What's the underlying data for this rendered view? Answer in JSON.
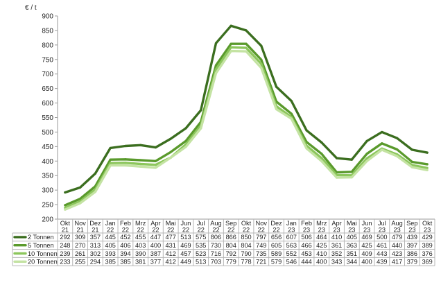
{
  "chart_data": {
    "type": "line",
    "ylabel": "€ / t",
    "ylim": [
      200,
      900
    ],
    "yticks": [
      200,
      250,
      300,
      350,
      400,
      450,
      500,
      550,
      600,
      650,
      700,
      750,
      800,
      850,
      900
    ],
    "grid": false,
    "legend": "table-below",
    "categories": [
      [
        "Okt",
        "21"
      ],
      [
        "Nov",
        "21"
      ],
      [
        "Dez",
        "21"
      ],
      [
        "Jan",
        "22"
      ],
      [
        "Feb",
        "22"
      ],
      [
        "Mrz",
        "22"
      ],
      [
        "Apr",
        "22"
      ],
      [
        "Mai",
        "22"
      ],
      [
        "Jun",
        "22"
      ],
      [
        "Jul",
        "22"
      ],
      [
        "Aug",
        "22"
      ],
      [
        "Sep",
        "22"
      ],
      [
        "Okt",
        "22"
      ],
      [
        "Nov",
        "22"
      ],
      [
        "Dez",
        "22"
      ],
      [
        "Jan",
        "23"
      ],
      [
        "Feb",
        "23"
      ],
      [
        "Mrz",
        "23"
      ],
      [
        "Apr",
        "23"
      ],
      [
        "Mai",
        "23"
      ],
      [
        "Jun",
        "23"
      ],
      [
        "Jul",
        "23"
      ],
      [
        "Aug",
        "23"
      ],
      [
        "Sep",
        "23"
      ],
      [
        "Okt",
        "23"
      ]
    ],
    "series": [
      {
        "name": "2 Tonnen",
        "color": "#3b6e1f",
        "values": [
          292,
          309,
          357,
          445,
          452,
          455,
          447,
          477,
          513,
          575,
          806,
          866,
          850,
          797,
          656,
          607,
          506,
          464,
          410,
          405,
          469,
          500,
          479,
          439,
          429
        ]
      },
      {
        "name": "5 Tonnen",
        "color": "#5a9a2c",
        "values": [
          248,
          270,
          313,
          405,
          406,
          403,
          400,
          431,
          469,
          535,
          730,
          804,
          804,
          749,
          605,
          563,
          466,
          425,
          361,
          363,
          425,
          461,
          440,
          397,
          389
        ]
      },
      {
        "name": "10 Tonnen",
        "color": "#8cc65c",
        "values": [
          239,
          261,
          302,
          393,
          394,
          390,
          387,
          412,
          457,
          523,
          716,
          792,
          790,
          735,
          589,
          552,
          453,
          410,
          352,
          351,
          409,
          443,
          423,
          386,
          376
        ]
      },
      {
        "name": "20 Tonnen",
        "color": "#c4e3a3",
        "values": [
          233,
          255,
          294,
          385,
          385,
          381,
          377,
          412,
          449,
          513,
          703,
          779,
          778,
          721,
          579,
          546,
          444,
          400,
          343,
          344,
          400,
          439,
          417,
          379,
          369
        ]
      }
    ]
  }
}
